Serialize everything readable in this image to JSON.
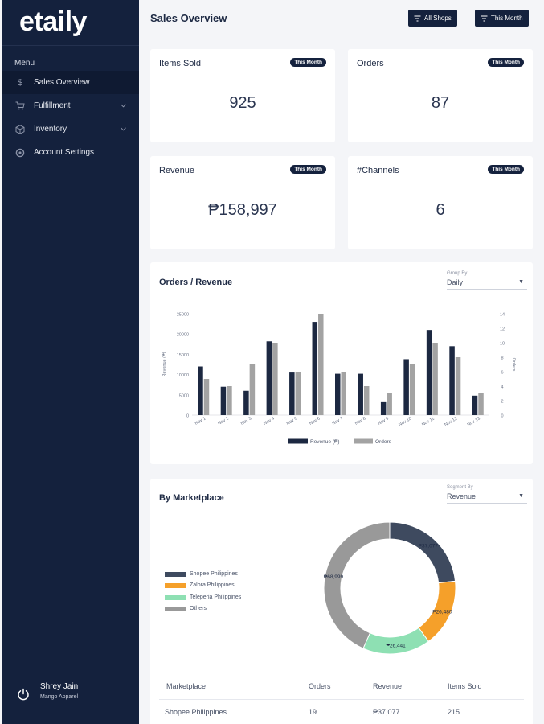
{
  "app": {
    "logo": "etaily"
  },
  "sidebar": {
    "menu_label": "Menu",
    "items": [
      {
        "label": "Sales Overview",
        "icon": "dollar-icon",
        "active": true
      },
      {
        "label": "Fulfillment",
        "icon": "cart-icon",
        "expandable": true
      },
      {
        "label": "Inventory",
        "icon": "box-icon",
        "expandable": true
      },
      {
        "label": "Account Settings",
        "icon": "gear-icon"
      }
    ],
    "user": {
      "name": "Shrey Jain",
      "company": "Mango Apparel"
    }
  },
  "header": {
    "title": "Sales Overview",
    "filters": {
      "shops": "All Shops",
      "period": "This Month"
    }
  },
  "kpis": [
    {
      "title": "Items Sold",
      "badge": "This Month",
      "value": "925"
    },
    {
      "title": "Orders",
      "badge": "This Month",
      "value": "87"
    },
    {
      "title": "Revenue",
      "badge": "This Month",
      "value": "₱158,997"
    },
    {
      "title": "#Channels",
      "badge": "This Month",
      "value": "6"
    }
  ],
  "orders_revenue": {
    "title": "Orders / Revenue",
    "group_by": {
      "caption": "Group By",
      "value": "Daily"
    }
  },
  "marketplace": {
    "title": "By Marketplace",
    "segment_by": {
      "caption": "Segment By",
      "value": "Revenue"
    },
    "table": {
      "headers": [
        "Marketplace",
        "Orders",
        "Revenue",
        "Items Sold"
      ],
      "rows": [
        [
          "Shopee Philippines",
          "19",
          "₱37,077",
          "215"
        ]
      ]
    }
  },
  "colors": {
    "sidebar": "#14213d",
    "revenue_bar": "#1c2841",
    "orders_bar": "#a3a3a3",
    "shopee": "#3e4a5f",
    "zalora": "#f5a02a",
    "teleperia": "#8ee0b3",
    "others": "#999999"
  },
  "chart_data": [
    {
      "type": "bar",
      "categories": [
        "Nov 1",
        "Nov 2",
        "Nov 3",
        "Nov 4",
        "Nov 5",
        "Nov 6",
        "Nov 7",
        "Nov 8",
        "Nov 9",
        "Nov 10",
        "Nov 11",
        "Nov 12",
        "Nov 13"
      ],
      "series": [
        {
          "name": "Revenue (₱)",
          "axis": "left",
          "values": [
            12000,
            7000,
            6000,
            18200,
            10500,
            23000,
            10200,
            10200,
            3200,
            13800,
            21000,
            17000,
            4800
          ]
        },
        {
          "name": "Orders",
          "axis": "right",
          "values": [
            5,
            4,
            7,
            10,
            6,
            14,
            6,
            4,
            3,
            7,
            10,
            8,
            3
          ]
        }
      ],
      "ylabel": "Revenue (₱)",
      "y2label": "Orders",
      "ylim": [
        0,
        25000
      ],
      "y2lim": [
        0,
        14
      ],
      "yticks": [
        0,
        5000,
        10000,
        15000,
        20000,
        25000
      ],
      "y2ticks": [
        0,
        2,
        4,
        6,
        8,
        10,
        12,
        14
      ],
      "legend": "bottom"
    },
    {
      "type": "pie",
      "donut": true,
      "labels": [
        "Shopee Philippines",
        "Zalora Philippines",
        "Teleperia Philippines",
        "Others"
      ],
      "values": [
        37077,
        26480,
        26441,
        68999
      ],
      "data_labels": [
        "₱37,077",
        "₱26,480",
        "₱26,441",
        "₱68,999"
      ],
      "legend": "left"
    }
  ]
}
